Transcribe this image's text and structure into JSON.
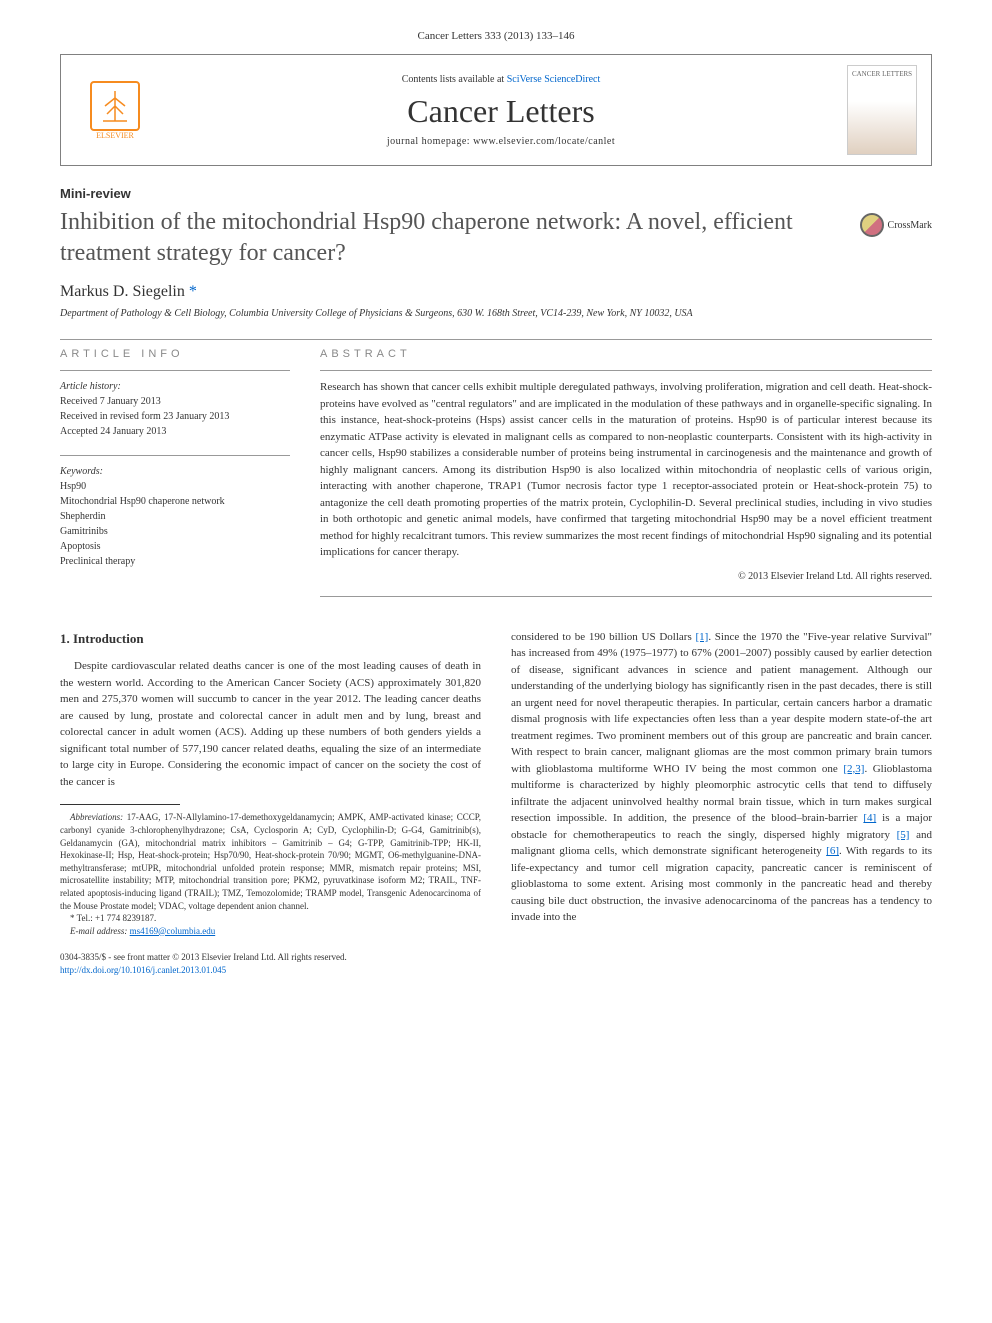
{
  "journal_ref": "Cancer Letters 333 (2013) 133–146",
  "header": {
    "elsevier_label": "ELSEVIER",
    "contents_prefix": "Contents lists available at ",
    "contents_link": "SciVerse ScienceDirect",
    "journal_title": "Cancer Letters",
    "homepage_prefix": "journal homepage: ",
    "homepage_url": "www.elsevier.com/locate/canlet",
    "cover_label": "CANCER LETTERS"
  },
  "article_type": "Mini-review",
  "title": "Inhibition of the mitochondrial Hsp90 chaperone network: A novel, efficient treatment strategy for cancer?",
  "crossmark_label": "CrossMark",
  "author": {
    "name": "Markus D. Siegelin",
    "marker": "*"
  },
  "affiliation": "Department of Pathology & Cell Biology, Columbia University College of Physicians & Surgeons, 630 W. 168th Street, VC14-239, New York, NY 10032, USA",
  "article_info": {
    "heading": "ARTICLE INFO",
    "history_label": "Article history:",
    "received": "Received 7 January 2013",
    "revised": "Received in revised form 23 January 2013",
    "accepted": "Accepted 24 January 2013",
    "keywords_label": "Keywords:",
    "keywords": [
      "Hsp90",
      "Mitochondrial Hsp90 chaperone network",
      "Shepherdin",
      "Gamitrinibs",
      "Apoptosis",
      "Preclinical therapy"
    ]
  },
  "abstract": {
    "heading": "ABSTRACT",
    "text": "Research has shown that cancer cells exhibit multiple deregulated pathways, involving proliferation, migration and cell death. Heat-shock-proteins have evolved as \"central regulators\" and are implicated in the modulation of these pathways and in organelle-specific signaling. In this instance, heat-shock-proteins (Hsps) assist cancer cells in the maturation of proteins. Hsp90 is of particular interest because its enzymatic ATPase activity is elevated in malignant cells as compared to non-neoplastic counterparts. Consistent with its high-activity in cancer cells, Hsp90 stabilizes a considerable number of proteins being instrumental in carcinogenesis and the maintenance and growth of highly malignant cancers. Among its distribution Hsp90 is also localized within mitochondria of neoplastic cells of various origin, interacting with another chaperone, TRAP1 (Tumor necrosis factor type 1 receptor-associated protein or Heat-shock-protein 75) to antagonize the cell death promoting properties of the matrix protein, Cyclophilin-D. Several preclinical studies, including in vivo studies in both orthotopic and genetic animal models, have confirmed that targeting mitochondrial Hsp90 may be a novel efficient treatment method for highly recalcitrant tumors. This review summarizes the most recent findings of mitochondrial Hsp90 signaling and its potential implications for cancer therapy.",
    "copyright": "© 2013 Elsevier Ireland Ltd. All rights reserved."
  },
  "body": {
    "intro_heading": "1. Introduction",
    "col1_para": "Despite cardiovascular related deaths cancer is one of the most leading causes of death in the western world. According to the American Cancer Society (ACS) approximately 301,820 men and 275,370 women will succumb to cancer in the year 2012. The leading cancer deaths are caused by lung, prostate and colorectal cancer in adult men and by lung, breast and colorectal cancer in adult women (ACS). Adding up these numbers of both genders yields a significant total number of 577,190 cancer related deaths, equaling the size of an intermediate to large city in Europe. Considering the economic impact of cancer on the society the cost of the cancer is",
    "col2_para": "considered to be 190 billion US Dollars [1]. Since the 1970 the \"Five-year relative Survival\" has increased from 49% (1975–1977) to 67% (2001–2007) possibly caused by earlier detection of disease, significant advances in science and patient management. Although our understanding of the underlying biology has significantly risen in the past decades, there is still an urgent need for novel therapeutic therapies. In particular, certain cancers harbor a dramatic dismal prognosis with life expectancies often less than a year despite modern state-of-the art treatment regimes. Two prominent members out of this group are pancreatic and brain cancer. With respect to brain cancer, malignant gliomas are the most common primary brain tumors with glioblastoma multiforme WHO IV being the most common one [2,3]. Glioblastoma multiforme is characterized by highly pleomorphic astrocytic cells that tend to diffusely infiltrate the adjacent uninvolved healthy normal brain tissue, which in turn makes surgical resection impossible. In addition, the presence of the blood–brain-barrier [4] is a major obstacle for chemotherapeutics to reach the singly, dispersed highly migratory [5] and malignant glioma cells, which demonstrate significant heterogeneity [6]. With regards to its life-expectancy and tumor cell migration capacity, pancreatic cancer is reminiscent of glioblastoma to some extent. Arising most commonly in the pancreatic head and thereby causing bile duct obstruction, the invasive adenocarcinoma of the pancreas has a tendency to invade into the"
  },
  "footnotes": {
    "abbreviations_label": "Abbreviations:",
    "abbreviations": " 17-AAG, 17-N-Allylamino-17-demethoxygeldanamycin; AMPK, AMP-activated kinase; CCCP, carbonyl cyanide 3-chlorophenylhydrazone; CsA, Cyclosporin A; CyD, Cyclophilin-D; G-G4, Gamitrinib(s), Geldanamycin (GA), mitochondrial matrix inhibitors – Gamitrinib – G4; G-TPP, Gamitrinib-TPP; HK-II, Hexokinase-II; Hsp, Heat-shock-protein; Hsp70/90, Heat-shock-protein 70/90; MGMT, O6-methylguanine-DNA-methyltransferase; mtUPR, mitochondrial unfolded protein response; MMR, mismatch repair proteins; MSI, microsatellite instability; MTP, mitochondrial transition pore; PKM2, pyruvatkinase isoform M2; TRAIL, TNF-related apoptosis-inducing ligand (TRAIL); TMZ, Temozolomide; TRAMP model, Transgenic Adenocarcinoma of the Mouse Prostate model; VDAC, voltage dependent anion channel.",
    "corresponding_marker": "*",
    "tel": " Tel.: +1 774 8239187.",
    "email_label": "E-mail address: ",
    "email": "ms4169@columbia.edu"
  },
  "footer": {
    "issn": "0304-3835/$ - see front matter © 2013 Elsevier Ireland Ltd. All rights reserved.",
    "doi_url": "http://dx.doi.org/10.1016/j.canlet.2013.01.045"
  },
  "colors": {
    "link": "#0066cc",
    "orange": "#f68b1f",
    "text": "#333333",
    "muted": "#888888"
  }
}
